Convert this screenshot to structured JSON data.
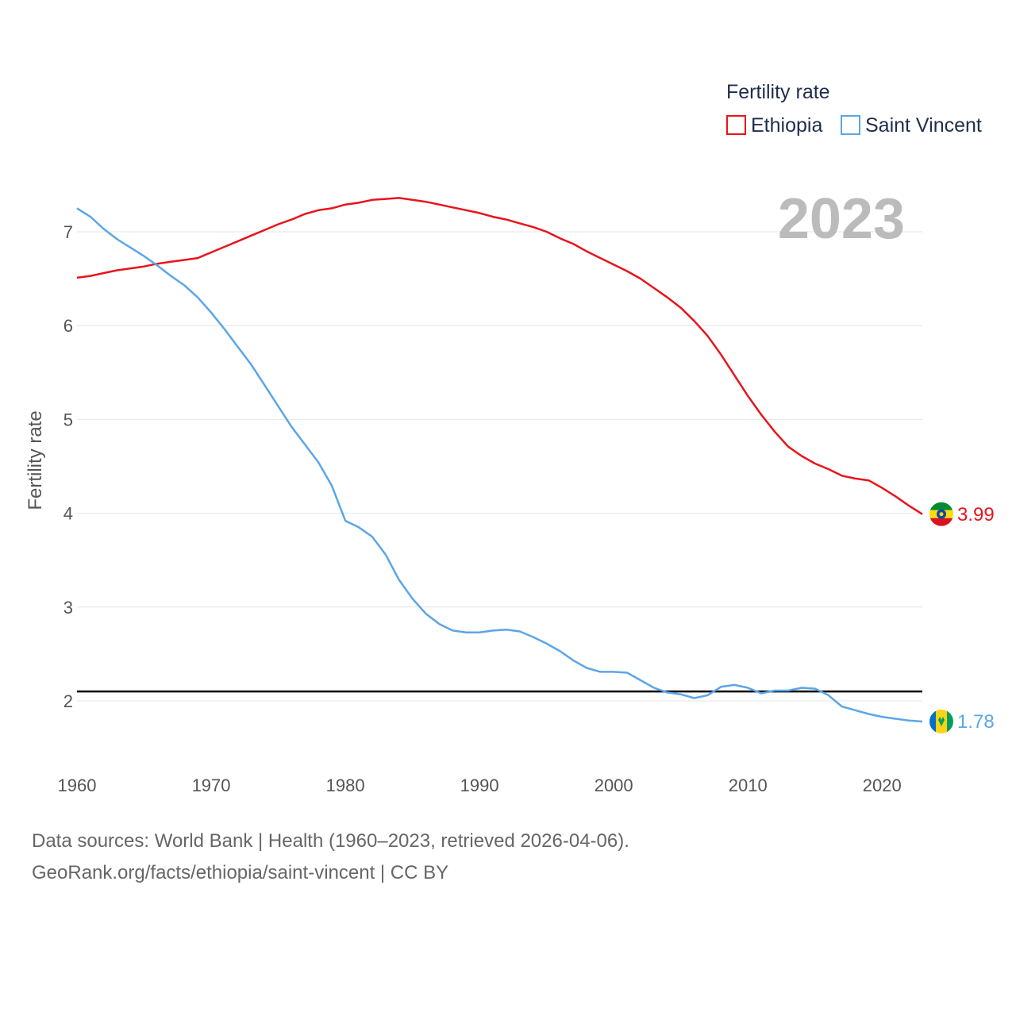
{
  "chart_data": {
    "type": "line",
    "title": "",
    "year_stamp": "2023",
    "ylabel": "Fertility rate",
    "xlabel": "",
    "xlim": [
      1960,
      2023
    ],
    "ylim": [
      1.5,
      7.5
    ],
    "x_ticks": [
      1960,
      1970,
      1980,
      1990,
      2000,
      2010,
      2020
    ],
    "y_ticks": [
      2,
      3,
      4,
      5,
      6,
      7
    ],
    "reference_line": 2.1,
    "legend": {
      "title": "Fertility rate",
      "position": "top-right"
    },
    "x": [
      1960,
      1961,
      1962,
      1963,
      1964,
      1965,
      1966,
      1967,
      1968,
      1969,
      1970,
      1971,
      1972,
      1973,
      1974,
      1975,
      1976,
      1977,
      1978,
      1979,
      1980,
      1981,
      1982,
      1983,
      1984,
      1985,
      1986,
      1987,
      1988,
      1989,
      1990,
      1991,
      1992,
      1993,
      1994,
      1995,
      1996,
      1997,
      1998,
      1999,
      2000,
      2001,
      2002,
      2003,
      2004,
      2005,
      2006,
      2007,
      2008,
      2009,
      2010,
      2011,
      2012,
      2013,
      2014,
      2015,
      2016,
      2017,
      2018,
      2019,
      2020,
      2021,
      2022,
      2023
    ],
    "series": [
      {
        "name": "Ethiopia",
        "color": "#e8141c",
        "end_label": "3.99",
        "values": [
          6.51,
          6.53,
          6.56,
          6.59,
          6.61,
          6.63,
          6.66,
          6.68,
          6.7,
          6.72,
          6.78,
          6.84,
          6.9,
          6.96,
          7.02,
          7.08,
          7.13,
          7.19,
          7.23,
          7.25,
          7.29,
          7.31,
          7.34,
          7.35,
          7.36,
          7.34,
          7.32,
          7.29,
          7.26,
          7.23,
          7.2,
          7.16,
          7.13,
          7.09,
          7.05,
          7.0,
          6.93,
          6.87,
          6.79,
          6.72,
          6.65,
          6.58,
          6.5,
          6.4,
          6.3,
          6.19,
          6.05,
          5.89,
          5.69,
          5.47,
          5.25,
          5.05,
          4.87,
          4.71,
          4.61,
          4.53,
          4.47,
          4.4,
          4.37,
          4.35,
          4.27,
          4.18,
          4.08,
          3.99
        ]
      },
      {
        "name": "Saint Vincent",
        "color": "#5ba6e8",
        "end_label": "1.78",
        "values": [
          7.25,
          7.16,
          7.03,
          6.92,
          6.83,
          6.74,
          6.64,
          6.53,
          6.43,
          6.3,
          6.14,
          5.96,
          5.77,
          5.58,
          5.36,
          5.14,
          4.92,
          4.73,
          4.54,
          4.29,
          3.92,
          3.85,
          3.75,
          3.56,
          3.29,
          3.09,
          2.93,
          2.82,
          2.75,
          2.73,
          2.73,
          2.75,
          2.76,
          2.74,
          2.68,
          2.61,
          2.53,
          2.43,
          2.35,
          2.31,
          2.31,
          2.3,
          2.22,
          2.14,
          2.09,
          2.07,
          2.03,
          2.06,
          2.15,
          2.17,
          2.14,
          2.08,
          2.11,
          2.11,
          2.14,
          2.13,
          2.06,
          1.94,
          1.9,
          1.86,
          1.83,
          1.81,
          1.79,
          1.78
        ]
      }
    ]
  },
  "footer": {
    "line1": "Data sources: World Bank | Health (1960–2023, retrieved 2026-04-06).",
    "line2": "GeoRank.org/facts/ethiopia/saint-vincent | CC BY"
  }
}
